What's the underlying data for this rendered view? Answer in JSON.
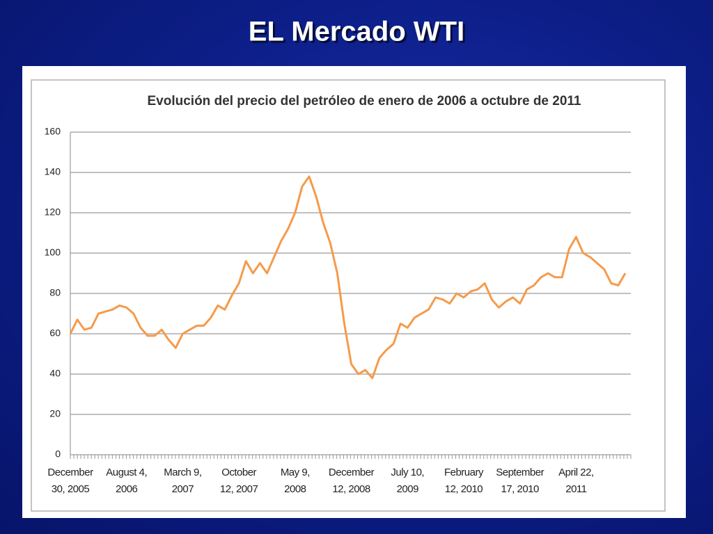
{
  "slide_title": "EL Mercado WTI",
  "chart_data": {
    "type": "line",
    "title": "Evolución del precio del petróleo de enero de 2006 a octubre de 2011",
    "categories": [
      "December\n30, 2005",
      null,
      null,
      null,
      null,
      null,
      null,
      null,
      "August 4,\n2006",
      null,
      null,
      null,
      null,
      null,
      null,
      null,
      "March 9,\n2007",
      null,
      null,
      null,
      null,
      null,
      null,
      null,
      "October\n12, 2007",
      null,
      null,
      null,
      null,
      null,
      null,
      null,
      "May 9,\n2008",
      null,
      null,
      null,
      null,
      null,
      null,
      null,
      "December\n12, 2008",
      null,
      null,
      null,
      null,
      null,
      null,
      null,
      "July 10,\n2009",
      null,
      null,
      null,
      null,
      null,
      null,
      null,
      "February\n12, 2010",
      null,
      null,
      null,
      null,
      null,
      null,
      null,
      "September\n17, 2010",
      null,
      null,
      null,
      null,
      null,
      null,
      null,
      "April 22,\n2011",
      null,
      null,
      null,
      null,
      null,
      null,
      null
    ],
    "series": [
      {
        "color": "#f59a4a",
        "values": [
          60,
          67,
          62,
          63,
          70,
          71,
          72,
          74,
          73,
          70,
          63,
          59,
          59,
          62,
          57,
          53,
          60,
          62,
          64,
          64,
          68,
          74,
          72,
          79,
          85,
          96,
          90,
          95,
          90,
          98,
          106,
          112,
          120,
          133,
          138,
          128,
          115,
          105,
          90,
          65,
          45,
          40,
          42,
          38,
          48,
          52,
          55,
          65,
          63,
          68,
          70,
          72,
          78,
          77,
          75,
          80,
          78,
          81,
          82,
          85,
          77,
          73,
          76,
          78,
          75,
          82,
          84,
          88,
          90,
          88,
          88,
          102,
          108,
          100,
          98,
          95,
          92,
          85,
          84,
          90
        ]
      }
    ],
    "ylim": [
      0,
      160
    ],
    "yticks": [
      0,
      20,
      40,
      60,
      80,
      100,
      120,
      140,
      160
    ],
    "grid": true
  }
}
